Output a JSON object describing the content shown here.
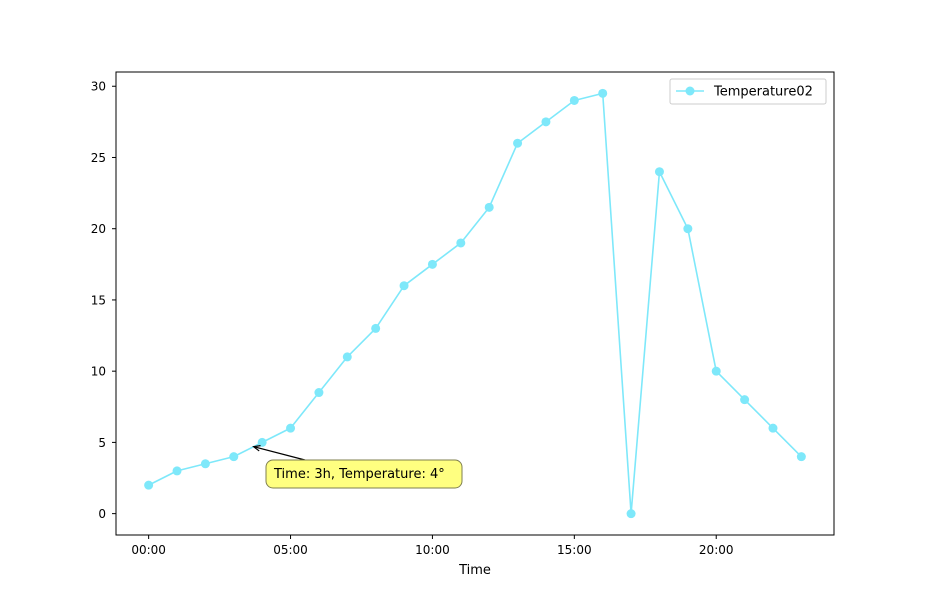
{
  "chart_data": {
    "type": "line",
    "title": "",
    "xlabel": "Time",
    "ylabel": "",
    "x_unit": "hour",
    "x": [
      0,
      1,
      2,
      3,
      4,
      5,
      6,
      7,
      8,
      9,
      10,
      11,
      12,
      13,
      14,
      15,
      16,
      17,
      18,
      19,
      20,
      21,
      22,
      23
    ],
    "xlim": [
      -1.15,
      24.15
    ],
    "ylim": [
      -1.5,
      31
    ],
    "x_ticks": [
      {
        "value": 0,
        "label": "00:00"
      },
      {
        "value": 5,
        "label": "05:00"
      },
      {
        "value": 10,
        "label": "10:00"
      },
      {
        "value": 15,
        "label": "15:00"
      },
      {
        "value": 20,
        "label": "20:00"
      }
    ],
    "y_ticks": [
      {
        "value": 0,
        "label": "0"
      },
      {
        "value": 5,
        "label": "5"
      },
      {
        "value": 10,
        "label": "10"
      },
      {
        "value": 15,
        "label": "15"
      },
      {
        "value": 20,
        "label": "20"
      },
      {
        "value": 25,
        "label": "25"
      },
      {
        "value": 30,
        "label": "30"
      }
    ],
    "grid": false,
    "series": [
      {
        "name": "Temperature02",
        "color": "#7ee8fa",
        "marker": "circle",
        "values": [
          2,
          3,
          3.5,
          4,
          5,
          6,
          8.5,
          11,
          13,
          16,
          17.5,
          19,
          21.5,
          26,
          27.5,
          29,
          29.5,
          0,
          24,
          20,
          10,
          8,
          6,
          4
        ]
      }
    ],
    "legend": {
      "placement": "top-right",
      "entries": [
        "Temperature02"
      ]
    },
    "annotation": {
      "text": "Time: 3h, Temperature: 4°",
      "point": {
        "x": 3.7,
        "y": 4.7
      },
      "box_color": "#ffff80",
      "arrow": true
    }
  }
}
